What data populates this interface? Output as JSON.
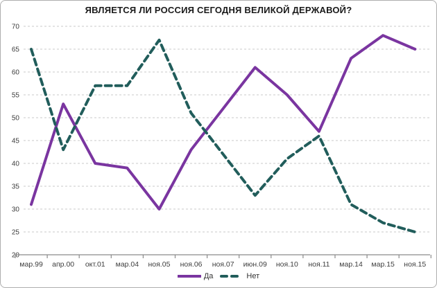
{
  "title": "ЯВЛЯЕТСЯ ЛИ РОССИЯ СЕГОДНЯ ВЕЛИКОЙ ДЕРЖАВОЙ?",
  "chart_data": {
    "type": "line",
    "title": "ЯВЛЯЕТСЯ ЛИ РОССИЯ СЕГОДНЯ ВЕЛИКОЙ ДЕРЖАВОЙ?",
    "categories": [
      "мар.99",
      "апр.00",
      "окт.01",
      "мар.04",
      "ноя.05",
      "ноя.06",
      "ноя.07",
      "июн.09",
      "ноя.10",
      "ноя.11",
      "мар.14",
      "мар.15",
      "ноя.15"
    ],
    "series": [
      {
        "name": "Да",
        "style": "solid",
        "color": "#7A35A0",
        "values": [
          31,
          53,
          40,
          39,
          30,
          43,
          52,
          61,
          55,
          47,
          63,
          68,
          65
        ]
      },
      {
        "name": "Нет",
        "style": "dashed",
        "color": "#215D5B",
        "values": [
          65,
          43,
          57,
          57,
          67,
          51,
          42,
          33,
          41,
          46,
          31,
          27,
          25
        ]
      }
    ],
    "ylim": [
      20,
      70
    ],
    "ytick_step": 5,
    "yticks": [
      20,
      25,
      30,
      35,
      40,
      45,
      50,
      55,
      60,
      65,
      70
    ],
    "grid": "horizontal-dashed",
    "legend_position": "bottom-center",
    "colors": {
      "gridline": "#c8c8c8",
      "axis": "#8a8a8a",
      "tick_label": "#3d3d3d",
      "title_text": "#1a1a1a"
    }
  }
}
